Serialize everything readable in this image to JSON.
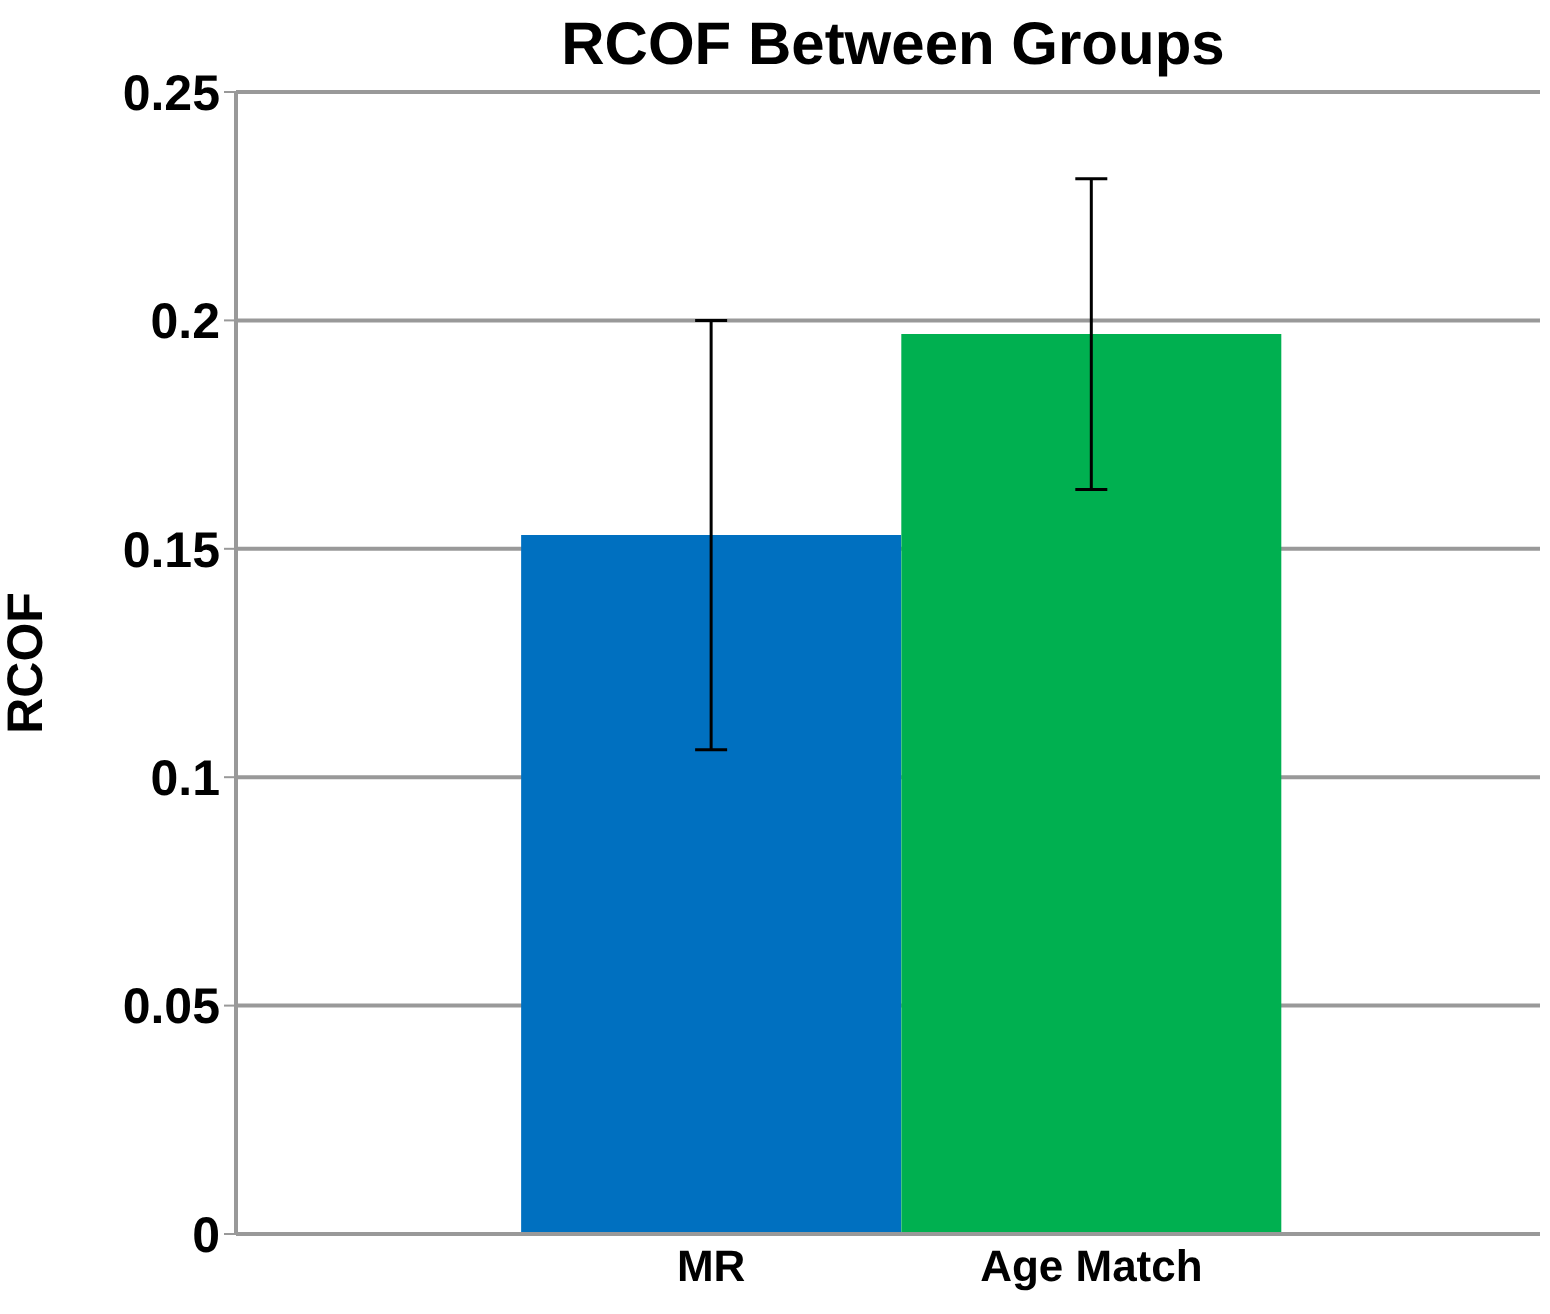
{
  "chart_data": {
    "type": "bar",
    "title": "RCOF Between Groups",
    "ylabel": "RCOF",
    "categories": [
      "MR",
      "Age Match"
    ],
    "values": [
      0.153,
      0.197
    ],
    "colors": [
      "#0070c0",
      "#00b050"
    ],
    "errors": [
      0.047,
      0.034
    ],
    "ylim": [
      0,
      0.25
    ],
    "yticks": [
      0,
      0.05,
      0.1,
      0.15,
      0.2,
      0.25
    ],
    "grid": "y"
  }
}
